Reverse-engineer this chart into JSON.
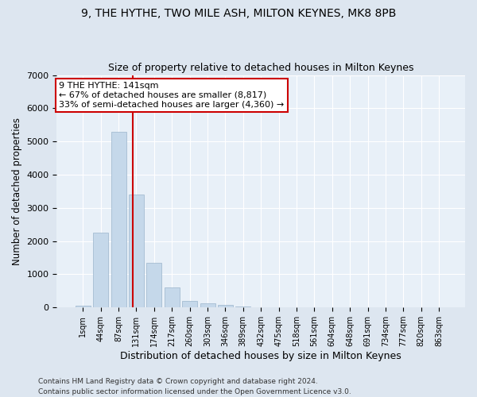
{
  "title1": "9, THE HYTHE, TWO MILE ASH, MILTON KEYNES, MK8 8PB",
  "title2": "Size of property relative to detached houses in Milton Keynes",
  "xlabel": "Distribution of detached houses by size in Milton Keynes",
  "ylabel": "Number of detached properties",
  "footer1": "Contains HM Land Registry data © Crown copyright and database right 2024.",
  "footer2": "Contains public sector information licensed under the Open Government Licence v3.0.",
  "bar_labels": [
    "1sqm",
    "44sqm",
    "87sqm",
    "131sqm",
    "174sqm",
    "217sqm",
    "260sqm",
    "303sqm",
    "346sqm",
    "389sqm",
    "432sqm",
    "475sqm",
    "518sqm",
    "561sqm",
    "604sqm",
    "648sqm",
    "691sqm",
    "734sqm",
    "777sqm",
    "820sqm",
    "863sqm"
  ],
  "bar_values": [
    55,
    2250,
    5300,
    3400,
    1350,
    600,
    190,
    130,
    80,
    30,
    10,
    5,
    2,
    1,
    0,
    0,
    0,
    0,
    0,
    0,
    0
  ],
  "bar_color": "#c5d8ea",
  "bar_edge_color": "#9ab4cc",
  "vline_color": "#cc0000",
  "annotation_title": "9 THE HYTHE: 141sqm",
  "annotation_line1": "← 67% of detached houses are smaller (8,817)",
  "annotation_line2": "33% of semi-detached houses are larger (4,360) →",
  "annotation_box_color": "#ffffff",
  "annotation_box_edge": "#cc0000",
  "ylim": [
    0,
    7000
  ],
  "yticks": [
    0,
    1000,
    2000,
    3000,
    4000,
    5000,
    6000,
    7000
  ],
  "bg_color": "#dde6f0",
  "axes_bg_color": "#e8f0f8",
  "grid_color": "#ffffff",
  "title1_fontsize": 10,
  "title2_fontsize": 9,
  "xlabel_fontsize": 9,
  "ylabel_fontsize": 8.5,
  "footer_fontsize": 6.5
}
